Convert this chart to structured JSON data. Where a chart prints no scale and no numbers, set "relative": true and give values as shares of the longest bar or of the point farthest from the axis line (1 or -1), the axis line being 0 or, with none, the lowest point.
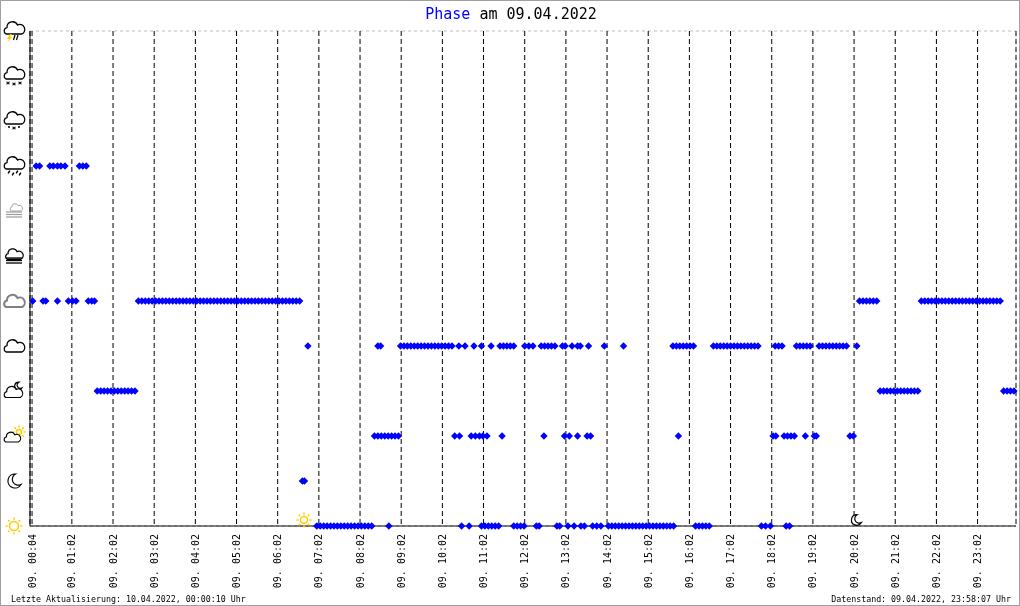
{
  "chart_data": {
    "type": "scatter",
    "title": "am 09.04.2022",
    "annotations": [
      "Letzte Aktualisierung: 10.04.2022, 00:00:10 Uhr",
      "Datenstand: 09.04.2022, 23:58:07 Uhr"
    ],
    "relative": true,
    "marker": "diamond",
    "grid": true,
    "xlim": [
      "2022-04-09T00:01",
      "2022-04-09T23:58"
    ],
    "xticks": [
      {
        "value": "2022-04-09T00:04",
        "label": "09. 00:04"
      },
      {
        "value": "2022-04-09T01:02",
        "label": "09. 01:02"
      },
      {
        "value": "2022-04-09T02:02",
        "label": "09. 02:02"
      },
      {
        "value": "2022-04-09T03:02",
        "label": "09. 03:02"
      },
      {
        "value": "2022-04-09T04:02",
        "label": "09. 04:02"
      },
      {
        "value": "2022-04-09T05:02",
        "label": "09. 05:02"
      },
      {
        "value": "2022-04-09T06:02",
        "label": "09. 06:02"
      },
      {
        "value": "2022-04-09T07:02",
        "label": "09. 07:02"
      },
      {
        "value": "2022-04-09T08:02",
        "label": "09. 08:02"
      },
      {
        "value": "2022-04-09T09:02",
        "label": "09. 09:02"
      },
      {
        "value": "2022-04-09T10:02",
        "label": "09. 10:02"
      },
      {
        "value": "2022-04-09T11:02",
        "label": "09. 11:02"
      },
      {
        "value": "2022-04-09T12:02",
        "label": "09. 12:02"
      },
      {
        "value": "2022-04-09T13:02",
        "label": "09. 13:02"
      },
      {
        "value": "2022-04-09T14:02",
        "label": "09. 14:02"
      },
      {
        "value": "2022-04-09T15:02",
        "label": "09. 15:02"
      },
      {
        "value": "2022-04-09T16:02",
        "label": "09. 16:02"
      },
      {
        "value": "2022-04-09T17:02",
        "label": "09. 17:02"
      },
      {
        "value": "2022-04-09T18:02",
        "label": "09. 18:02"
      },
      {
        "value": "2022-04-09T19:02",
        "label": "09. 19:02"
      },
      {
        "value": "2022-04-09T20:02",
        "label": "09. 20:02"
      },
      {
        "value": "2022-04-09T21:02",
        "label": "09. 21:02"
      },
      {
        "value": "2022-04-09T22:02",
        "label": "09. 22:02"
      },
      {
        "value": "2022-04-09T23:02",
        "label": "09. 23:02"
      }
    ],
    "series": [
      {
        "name": "Phase",
        "color": "#0000ff",
        "x": [
          "2022-04-09T00:10",
          "2022-04-09T00:15",
          "2022-04-09T00:30",
          "2022-04-09T00:35",
          "2022-04-09T00:41",
          "2022-04-09T00:46",
          "2022-04-09T00:52",
          "2022-04-09T01:13",
          "2022-04-09T01:18",
          "2022-04-09T01:23",
          "2022-04-09T00:05",
          "2022-04-09T00:20",
          "2022-04-09T00:24",
          "2022-04-09T00:41",
          "2022-04-09T00:57",
          "2022-04-09T01:03",
          "2022-04-09T01:08",
          "2022-04-09T01:26",
          "2022-04-09T01:31",
          "2022-04-09T01:35",
          "2022-04-09T02:39",
          "2022-04-09T02:44",
          "2022-04-09T02:49",
          "2022-04-09T02:54",
          "2022-04-09T02:59",
          "2022-04-09T03:04",
          "2022-04-09T03:09",
          "2022-04-09T03:14",
          "2022-04-09T03:19",
          "2022-04-09T03:24",
          "2022-04-09T03:29",
          "2022-04-09T03:34",
          "2022-04-09T03:39",
          "2022-04-09T03:44",
          "2022-04-09T03:49",
          "2022-04-09T03:54",
          "2022-04-09T03:59",
          "2022-04-09T04:04",
          "2022-04-09T04:09",
          "2022-04-09T04:14",
          "2022-04-09T04:19",
          "2022-04-09T04:24",
          "2022-04-09T04:29",
          "2022-04-09T04:34",
          "2022-04-09T04:39",
          "2022-04-09T04:44",
          "2022-04-09T04:49",
          "2022-04-09T04:54",
          "2022-04-09T04:59",
          "2022-04-09T05:04",
          "2022-04-09T05:09",
          "2022-04-09T05:14",
          "2022-04-09T05:19",
          "2022-04-09T05:24",
          "2022-04-09T05:29",
          "2022-04-09T05:34",
          "2022-04-09T05:39",
          "2022-04-09T05:44",
          "2022-04-09T05:49",
          "2022-04-09T05:54",
          "2022-04-09T05:59",
          "2022-04-09T06:04",
          "2022-04-09T06:09",
          "2022-04-09T06:14",
          "2022-04-09T06:19",
          "2022-04-09T06:24",
          "2022-04-09T06:29",
          "2022-04-09T06:34",
          "2022-04-09T20:10",
          "2022-04-09T20:15",
          "2022-04-09T20:20",
          "2022-04-09T20:25",
          "2022-04-09T20:30",
          "2022-04-09T20:35",
          "2022-04-09T21:40",
          "2022-04-09T21:45",
          "2022-04-09T21:50",
          "2022-04-09T21:55",
          "2022-04-09T22:00",
          "2022-04-09T22:05",
          "2022-04-09T22:10",
          "2022-04-09T22:15",
          "2022-04-09T22:20",
          "2022-04-09T22:25",
          "2022-04-09T22:30",
          "2022-04-09T22:35",
          "2022-04-09T22:40",
          "2022-04-09T22:45",
          "2022-04-09T22:50",
          "2022-04-09T22:55",
          "2022-04-09T23:00",
          "2022-04-09T23:05",
          "2022-04-09T23:10",
          "2022-04-09T23:15",
          "2022-04-09T23:20",
          "2022-04-09T23:25",
          "2022-04-09T23:30",
          "2022-04-09T23:35",
          "2022-04-09T01:39",
          "2022-04-09T01:44",
          "2022-04-09T01:49",
          "2022-04-09T01:54",
          "2022-04-09T01:59",
          "2022-04-09T02:04",
          "2022-04-09T02:09",
          "2022-04-09T02:14",
          "2022-04-09T02:19",
          "2022-04-09T02:24",
          "2022-04-09T02:29",
          "2022-04-09T02:34",
          "2022-04-09T20:40",
          "2022-04-09T20:45",
          "2022-04-09T20:50",
          "2022-04-09T20:55",
          "2022-04-09T21:00",
          "2022-04-09T21:05",
          "2022-04-09T21:10",
          "2022-04-09T21:15",
          "2022-04-09T21:20",
          "2022-04-09T21:25",
          "2022-04-09T21:30",
          "2022-04-09T21:35",
          "2022-04-09T23:40",
          "2022-04-09T23:45",
          "2022-04-09T23:50",
          "2022-04-09T23:55",
          "2022-04-09T06:38",
          "2022-04-09T06:41",
          "2022-04-09T06:46",
          "2022-04-09T08:28",
          "2022-04-09T08:32",
          "2022-04-09T09:01",
          "2022-04-09T09:06",
          "2022-04-09T09:11",
          "2022-04-09T09:16",
          "2022-04-09T09:21",
          "2022-04-09T09:26",
          "2022-04-09T09:31",
          "2022-04-09T09:36",
          "2022-04-09T09:41",
          "2022-04-09T09:46",
          "2022-04-09T09:51",
          "2022-04-09T09:56",
          "2022-04-09T10:01",
          "2022-04-09T10:06",
          "2022-04-09T10:11",
          "2022-04-09T10:16",
          "2022-04-09T10:26",
          "2022-04-09T10:35",
          "2022-04-09T10:48",
          "2022-04-09T10:59",
          "2022-04-09T11:13",
          "2022-04-09T11:26",
          "2022-04-09T11:31",
          "2022-04-09T11:36",
          "2022-04-09T11:41",
          "2022-04-09T11:46",
          "2022-04-09T12:02",
          "2022-04-09T12:08",
          "2022-04-09T12:14",
          "2022-04-09T12:26",
          "2022-04-09T12:31",
          "2022-04-09T12:36",
          "2022-04-09T12:41",
          "2022-04-09T12:46",
          "2022-04-09T12:57",
          "2022-04-09T13:01",
          "2022-04-09T13:11",
          "2022-04-09T13:19",
          "2022-04-09T13:23",
          "2022-04-09T13:35",
          "2022-04-09T13:58",
          "2022-04-09T14:26",
          "2022-04-09T15:38",
          "2022-04-09T15:43",
          "2022-04-09T15:48",
          "2022-04-09T15:53",
          "2022-04-09T15:58",
          "2022-04-09T16:03",
          "2022-04-09T16:08",
          "2022-04-09T16:37",
          "2022-04-09T16:42",
          "2022-04-09T16:47",
          "2022-04-09T16:52",
          "2022-04-09T16:57",
          "2022-04-09T17:02",
          "2022-04-09T17:07",
          "2022-04-09T17:12",
          "2022-04-09T17:17",
          "2022-04-09T17:22",
          "2022-04-09T17:27",
          "2022-04-09T17:32",
          "2022-04-09T17:37",
          "2022-04-09T17:42",
          "2022-04-09T18:07",
          "2022-04-09T18:12",
          "2022-04-09T18:17",
          "2022-04-09T18:38",
          "2022-04-09T18:43",
          "2022-04-09T18:48",
          "2022-04-09T18:53",
          "2022-04-09T18:58",
          "2022-04-09T19:11",
          "2022-04-09T19:16",
          "2022-04-09T19:21",
          "2022-04-09T19:26",
          "2022-04-09T19:31",
          "2022-04-09T19:36",
          "2022-04-09T19:41",
          "2022-04-09T19:46",
          "2022-04-09T19:51",
          "2022-04-09T20:06",
          "2022-04-09T06:59",
          "2022-04-09T07:04",
          "2022-04-09T07:09",
          "2022-04-09T07:14",
          "2022-04-09T07:19",
          "2022-04-09T07:24",
          "2022-04-09T07:29",
          "2022-04-09T07:34",
          "2022-04-09T07:39",
          "2022-04-09T07:44",
          "2022-04-09T07:49",
          "2022-04-09T07:54",
          "2022-04-09T07:59",
          "2022-04-09T08:04",
          "2022-04-09T08:09",
          "2022-04-09T08:14",
          "2022-04-09T08:19",
          "2022-04-09T08:44",
          "2022-04-09T10:30",
          "2022-04-09T10:41",
          "2022-04-09T10:59",
          "2022-04-09T11:04",
          "2022-04-09T11:09",
          "2022-04-09T11:14",
          "2022-04-09T11:19",
          "2022-04-09T11:24",
          "2022-04-09T11:46",
          "2022-04-09T11:51",
          "2022-04-09T11:56",
          "2022-04-09T12:01",
          "2022-04-09T12:19",
          "2022-04-09T12:23",
          "2022-04-09T12:49",
          "2022-04-09T12:53",
          "2022-04-09T13:05",
          "2022-04-09T13:14",
          "2022-04-09T13:24",
          "2022-04-09T13:29",
          "2022-04-09T13:41",
          "2022-04-09T13:47",
          "2022-04-09T13:53",
          "2022-04-09T14:04",
          "2022-04-09T14:09",
          "2022-04-09T14:14",
          "2022-04-09T14:19",
          "2022-04-09T14:24",
          "2022-04-09T14:29",
          "2022-04-09T14:34",
          "2022-04-09T14:39",
          "2022-04-09T14:44",
          "2022-04-09T14:49",
          "2022-04-09T14:54",
          "2022-04-09T14:59",
          "2022-04-09T15:04",
          "2022-04-09T15:09",
          "2022-04-09T15:14",
          "2022-04-09T15:19",
          "2022-04-09T15:24",
          "2022-04-09T15:29",
          "2022-04-09T15:34",
          "2022-04-09T15:39",
          "2022-04-09T16:11",
          "2022-04-09T16:16",
          "2022-04-09T16:21",
          "2022-04-09T16:26",
          "2022-04-09T16:31",
          "2022-04-09T17:47",
          "2022-04-09T17:53",
          "2022-04-09T18:00",
          "2022-04-09T18:23",
          "2022-04-09T18:28",
          "2022-04-09T08:23",
          "2022-04-09T08:28",
          "2022-04-09T08:33",
          "2022-04-09T08:38",
          "2022-04-09T08:43",
          "2022-04-09T08:48",
          "2022-04-09T08:53",
          "2022-04-09T08:58",
          "2022-04-09T10:20",
          "2022-04-09T10:27",
          "2022-04-09T10:44",
          "2022-04-09T10:50",
          "2022-04-09T10:56",
          "2022-04-09T11:01",
          "2022-04-09T11:07",
          "2022-04-09T11:29",
          "2022-04-09T12:30",
          "2022-04-09T13:00",
          "2022-04-09T13:07",
          "2022-04-09T13:19",
          "2022-04-09T13:33",
          "2022-04-09T13:38",
          "2022-04-09T15:46",
          "2022-04-09T18:04",
          "2022-04-09T18:08",
          "2022-04-09T18:20",
          "2022-04-09T18:25",
          "2022-04-09T18:30",
          "2022-04-09T18:35",
          "2022-04-09T18:51",
          "2022-04-09T19:04",
          "2022-04-09T19:07",
          "2022-04-09T19:56",
          "2022-04-09T20:01"
        ],
        "values": [
          1,
          1,
          1,
          1,
          1,
          1,
          1,
          1,
          1,
          1,
          0.625,
          0.625,
          0.625,
          0.625,
          0.625,
          0.625,
          0.625,
          0.625,
          0.625,
          0.625,
          0.625,
          0.625,
          0.625,
          0.625,
          0.625,
          0.625,
          0.625,
          0.625,
          0.625,
          0.625,
          0.625,
          0.625,
          0.625,
          0.625,
          0.625,
          0.625,
          0.625,
          0.625,
          0.625,
          0.625,
          0.625,
          0.625,
          0.625,
          0.625,
          0.625,
          0.625,
          0.625,
          0.625,
          0.625,
          0.625,
          0.625,
          0.625,
          0.625,
          0.625,
          0.625,
          0.625,
          0.625,
          0.625,
          0.625,
          0.625,
          0.625,
          0.625,
          0.625,
          0.625,
          0.625,
          0.625,
          0.625,
          0.625,
          0.625,
          0.625,
          0.625,
          0.625,
          0.625,
          0.625,
          0.625,
          0.625,
          0.625,
          0.625,
          0.625,
          0.625,
          0.625,
          0.625,
          0.625,
          0.625,
          0.625,
          0.625,
          0.625,
          0.625,
          0.625,
          0.625,
          0.625,
          0.625,
          0.625,
          0.625,
          0.625,
          0.625,
          0.625,
          0.625,
          0.375,
          0.375,
          0.375,
          0.375,
          0.375,
          0.375,
          0.375,
          0.375,
          0.375,
          0.375,
          0.375,
          0.375,
          0.375,
          0.375,
          0.375,
          0.375,
          0.375,
          0.375,
          0.375,
          0.375,
          0.375,
          0.375,
          0.375,
          0.375,
          0.375,
          0.375,
          0.375,
          0.375,
          0.125,
          0.125,
          0.5,
          0.5,
          0.5,
          0.5,
          0.5,
          0.5,
          0.5,
          0.5,
          0.5,
          0.5,
          0.5,
          0.5,
          0.5,
          0.5,
          0.5,
          0.5,
          0.5,
          0.5,
          0.5,
          0.5,
          0.5,
          0.5,
          0.5,
          0.5,
          0.5,
          0.5,
          0.5,
          0.5,
          0.5,
          0.5,
          0.5,
          0.5,
          0.5,
          0.5,
          0.5,
          0.5,
          0.5,
          0.5,
          0.5,
          0.5,
          0.5,
          0.5,
          0.5,
          0.5,
          0.5,
          0.5,
          0.5,
          0.5,
          0.5,
          0.5,
          0.5,
          0.5,
          0.5,
          0.5,
          0.5,
          0.5,
          0.5,
          0.5,
          0.5,
          0.5,
          0.5,
          0.5,
          0.5,
          0.5,
          0.5,
          0.5,
          0.5,
          0.5,
          0.5,
          0.5,
          0.5,
          0.5,
          0.5,
          0.5,
          0.5,
          0.5,
          0.5,
          0.5,
          0.5,
          0.5,
          0.5,
          0.5,
          0.5,
          0.5,
          0,
          0,
          0,
          0,
          0,
          0,
          0,
          0,
          0,
          0,
          0,
          0,
          0,
          0,
          0,
          0,
          0,
          0,
          0,
          0,
          0,
          0,
          0,
          0,
          0,
          0,
          0,
          0,
          0,
          0,
          0,
          0,
          0,
          0,
          0,
          0,
          0,
          0,
          0,
          0,
          0,
          0,
          0,
          0,
          0,
          0,
          0,
          0,
          0,
          0,
          0,
          0,
          0,
          0,
          0,
          0,
          0,
          0,
          0,
          0,
          0,
          0,
          0,
          0,
          0,
          0,
          0,
          0,
          0,
          0,
          0,
          0.25,
          0.25,
          0.25,
          0.25,
          0.25,
          0.25,
          0.25,
          0.25,
          0.25,
          0.25,
          0.25,
          0.25,
          0.25,
          0.25,
          0.25,
          0.25,
          0.25,
          0.25,
          0.25,
          0.25,
          0.25,
          0.25,
          0.25,
          0.25,
          0.25,
          0.25,
          0.25,
          0.25,
          0.25,
          0.25,
          0.25,
          0.25,
          0.25,
          0.25
        ]
      }
    ]
  }
}
